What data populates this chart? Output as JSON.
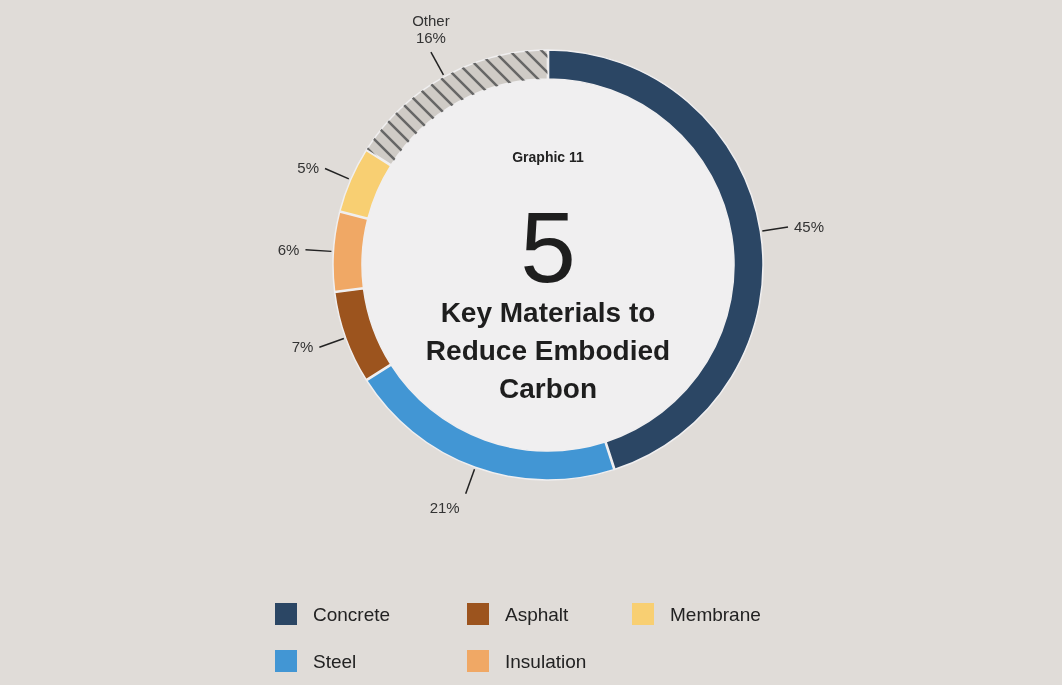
{
  "chart_data": {
    "type": "donut",
    "subtitle": "Graphic 11",
    "title": "5 Key Materials to Reduce Embodied Carbon",
    "categories": [
      "Concrete",
      "Steel",
      "Asphalt",
      "Insulation",
      "Membrane",
      "Other"
    ],
    "values": [
      45,
      21,
      7,
      6,
      5,
      16
    ],
    "colors": [
      "#2b4664",
      "#4296d4",
      "#9c541e",
      "#f0a865",
      "#f8cf72",
      "#cfcbc6"
    ],
    "value_labels": [
      "45%",
      "21%",
      "7%",
      "6%",
      "5%",
      "16%"
    ],
    "legend": "bottom"
  }
}
